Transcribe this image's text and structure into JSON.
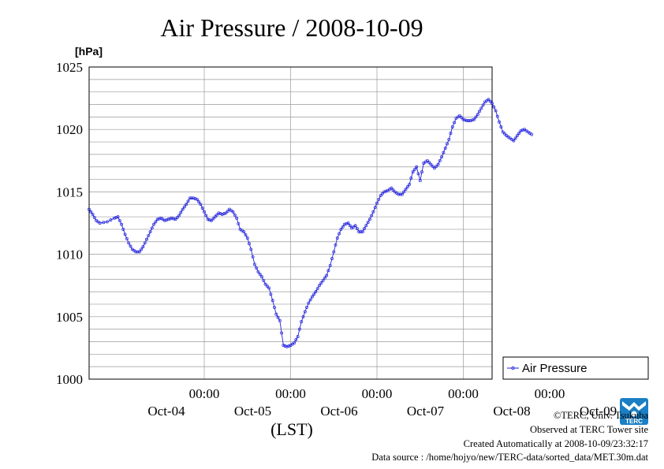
{
  "chart_data": {
    "type": "line",
    "title": "Air Pressure / 2008-10-09",
    "ylabel_unit": "[hPa]",
    "xlabel": "(LST)",
    "ylim": [
      1000,
      1025
    ],
    "y_ticks": [
      "1000",
      "1005",
      "1010",
      "1015",
      "1020",
      "1025"
    ],
    "x_range_hours": [
      -80,
      32
    ],
    "x_ticks": [
      {
        "time": "00:00",
        "date": "Oct-04",
        "hour": -48
      },
      {
        "time": "00:00",
        "date": "Oct-05",
        "hour": -24
      },
      {
        "time": "00:00",
        "date": "Oct-06",
        "hour": 0
      },
      {
        "time": "00:00",
        "date": "Oct-07",
        "hour": 24
      },
      {
        "time": "00:00",
        "date": "Oct-08",
        "hour": 48
      },
      {
        "time": "",
        "date": "Oct-09",
        "hour": 72
      }
    ],
    "grid": true,
    "legend": "right",
    "series": [
      {
        "name": "Air Pressure",
        "color": "#2222dd",
        "marker": "circle",
        "keypoints_hour_value": [
          [
            -80,
            1013.6
          ],
          [
            -79,
            1013.2
          ],
          [
            -78,
            1012.7
          ],
          [
            -77,
            1012.5
          ],
          [
            -75,
            1012.6
          ],
          [
            -73,
            1012.9
          ],
          [
            -72,
            1013.0
          ],
          [
            -71,
            1012.4
          ],
          [
            -70,
            1011.6
          ],
          [
            -69,
            1010.9
          ],
          [
            -68,
            1010.4
          ],
          [
            -67,
            1010.2
          ],
          [
            -66,
            1010.2
          ],
          [
            -65,
            1010.6
          ],
          [
            -64,
            1011.2
          ],
          [
            -63,
            1011.8
          ],
          [
            -62,
            1012.4
          ],
          [
            -61,
            1012.8
          ],
          [
            -60,
            1012.9
          ],
          [
            -59,
            1012.7
          ],
          [
            -58,
            1012.8
          ],
          [
            -57,
            1012.9
          ],
          [
            -56,
            1012.8
          ],
          [
            -55,
            1013.1
          ],
          [
            -54,
            1013.6
          ],
          [
            -53,
            1014.0
          ],
          [
            -52,
            1014.5
          ],
          [
            -51,
            1014.5
          ],
          [
            -50,
            1014.4
          ],
          [
            -49,
            1014.0
          ],
          [
            -48,
            1013.4
          ],
          [
            -47,
            1012.8
          ],
          [
            -46,
            1012.7
          ],
          [
            -45,
            1013.0
          ],
          [
            -44,
            1013.3
          ],
          [
            -43,
            1013.2
          ],
          [
            -42,
            1013.3
          ],
          [
            -41,
            1013.6
          ],
          [
            -40,
            1013.4
          ],
          [
            -39,
            1012.9
          ],
          [
            -38,
            1012.0
          ],
          [
            -37,
            1011.8
          ],
          [
            -36,
            1011.3
          ],
          [
            -35,
            1010.4
          ],
          [
            -34,
            1009.2
          ],
          [
            -33,
            1008.6
          ],
          [
            -32,
            1008.2
          ],
          [
            -31,
            1007.6
          ],
          [
            -30,
            1007.3
          ],
          [
            -29,
            1006.3
          ],
          [
            -28,
            1005.2
          ],
          [
            -27,
            1004.7
          ],
          [
            -26,
            1002.7
          ],
          [
            -25,
            1002.6
          ],
          [
            -24,
            1002.7
          ],
          [
            -23,
            1002.9
          ],
          [
            -22,
            1003.4
          ],
          [
            -21,
            1004.6
          ],
          [
            -20,
            1005.4
          ],
          [
            -19,
            1006.1
          ],
          [
            -18,
            1006.6
          ],
          [
            -17,
            1007.0
          ],
          [
            -16,
            1007.5
          ],
          [
            -15,
            1007.9
          ],
          [
            -14,
            1008.3
          ],
          [
            -13,
            1009.1
          ],
          [
            -12,
            1010.2
          ],
          [
            -11,
            1011.3
          ],
          [
            -10,
            1012.0
          ],
          [
            -9,
            1012.4
          ],
          [
            -8,
            1012.5
          ],
          [
            -7,
            1012.1
          ],
          [
            -6,
            1012.3
          ],
          [
            -5,
            1011.8
          ],
          [
            -4,
            1011.8
          ],
          [
            -3,
            1012.3
          ],
          [
            -2,
            1012.8
          ],
          [
            -1,
            1013.4
          ],
          [
            0,
            1014.1
          ],
          [
            1,
            1014.7
          ],
          [
            2,
            1015.0
          ],
          [
            3,
            1015.1
          ],
          [
            4,
            1015.3
          ],
          [
            5,
            1015.0
          ],
          [
            6,
            1014.8
          ],
          [
            7,
            1014.8
          ],
          [
            8,
            1015.2
          ],
          [
            9,
            1015.6
          ],
          [
            10,
            1016.6
          ],
          [
            11,
            1017.0
          ],
          [
            12,
            1015.9
          ],
          [
            13,
            1017.3
          ],
          [
            14,
            1017.5
          ],
          [
            15,
            1017.2
          ],
          [
            16,
            1016.9
          ],
          [
            17,
            1017.2
          ],
          [
            18,
            1017.8
          ],
          [
            19,
            1018.5
          ],
          [
            20,
            1019.2
          ],
          [
            21,
            1020.2
          ],
          [
            22,
            1020.9
          ],
          [
            23,
            1021.1
          ],
          [
            24,
            1020.8
          ],
          [
            25,
            1020.7
          ],
          [
            26,
            1020.7
          ],
          [
            27,
            1020.8
          ],
          [
            28,
            1021.2
          ],
          [
            29,
            1021.7
          ],
          [
            30,
            1022.2
          ],
          [
            31,
            1022.4
          ],
          [
            32,
            1022.1
          ],
          [
            33,
            1021.5
          ],
          [
            34,
            1020.6
          ],
          [
            35,
            1019.8
          ],
          [
            36,
            1019.5
          ],
          [
            37,
            1019.3
          ],
          [
            38,
            1019.1
          ],
          [
            39,
            1019.5
          ],
          [
            40,
            1019.9
          ],
          [
            41,
            1020.0
          ],
          [
            42,
            1019.8
          ],
          [
            43,
            1019.6
          ]
        ]
      }
    ]
  },
  "info": {
    "line1": "©TERC, Univ. Tsukuba",
    "line2": "Observed at TERC Tower site",
    "line3": "Created Automatically at 2008-10-09/23:32:17",
    "line4": "Data source : /home/hojyo/new/TERC-data/sorted_data/MET.30m.dat"
  },
  "logo": {
    "text": "TERC",
    "color": "#1a7fc4"
  }
}
